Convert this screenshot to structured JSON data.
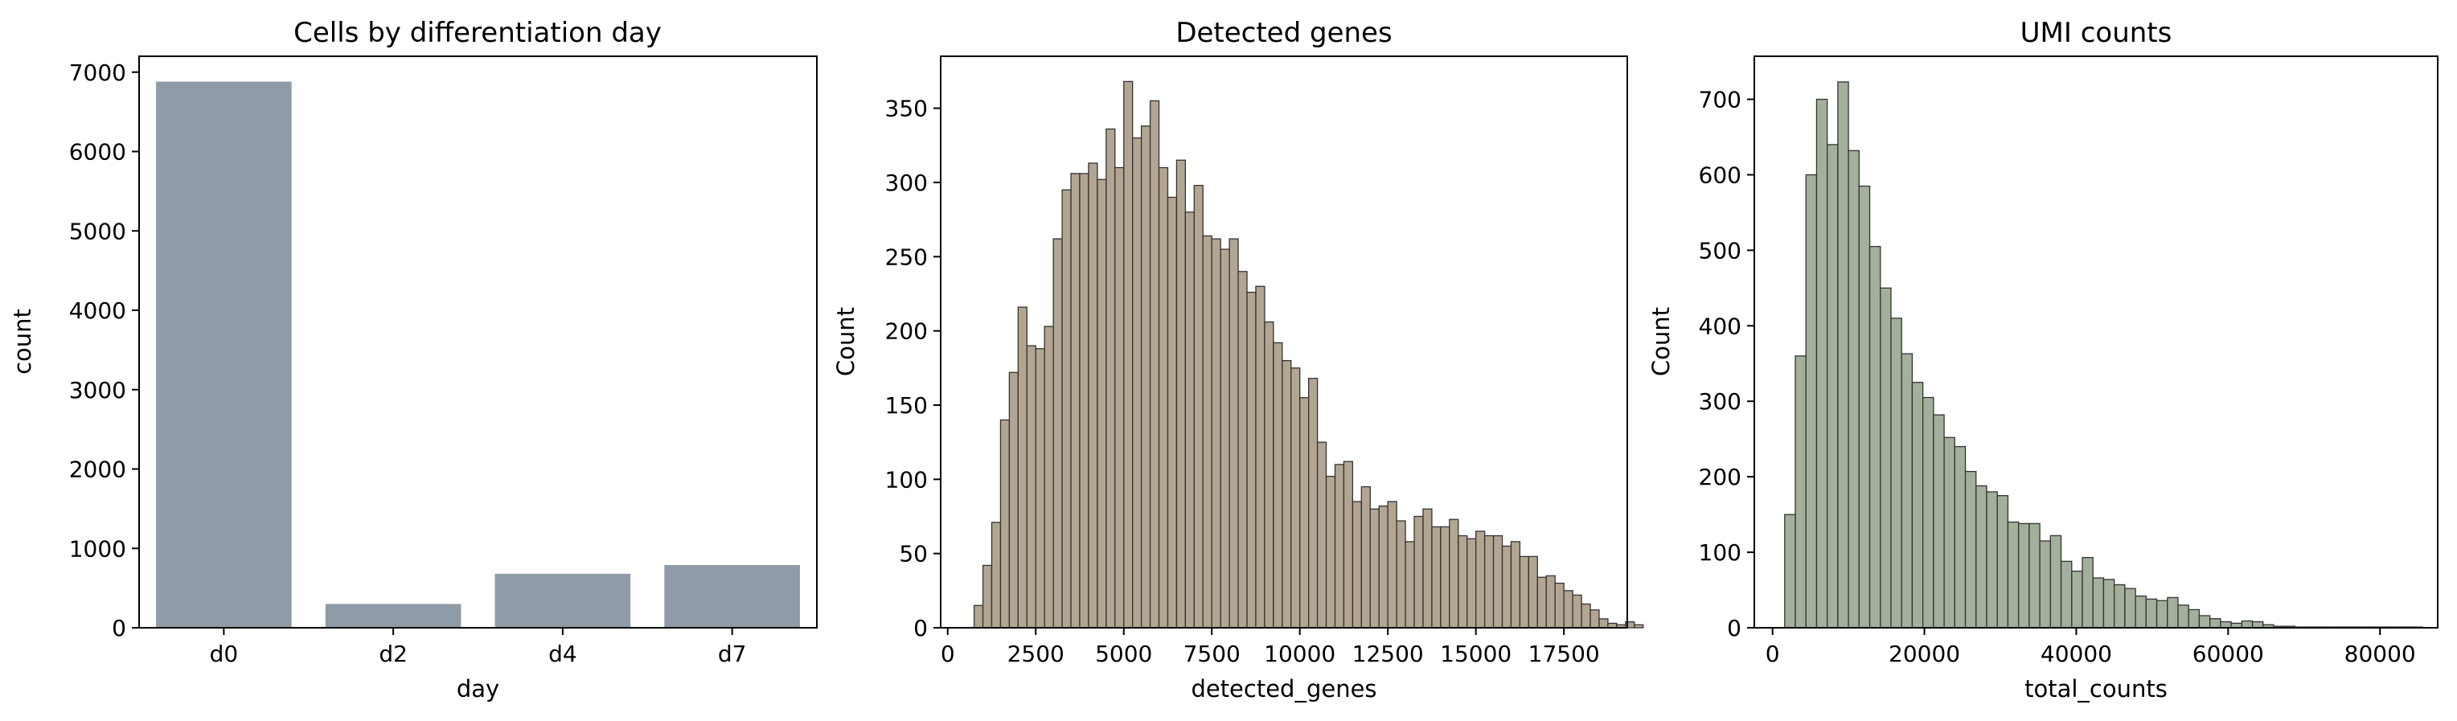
{
  "colors": {
    "bar_day": "#8f9ba6",
    "hist_genes": "#b2a592",
    "hist_umi": "#a3b09b",
    "edge": "#333333"
  },
  "chart_data": [
    {
      "type": "bar",
      "title": "Cells by differentiation day",
      "xlabel": "day",
      "ylabel": "count",
      "categories": [
        "d0",
        "d2",
        "d4",
        "d7"
      ],
      "values": [
        6880,
        300,
        680,
        790
      ],
      "ylim": [
        0,
        7200
      ],
      "yticks": [
        0,
        1000,
        2000,
        3000,
        4000,
        5000,
        6000,
        7000
      ],
      "yticklabels": [
        "0",
        "1000",
        "2000",
        "3000",
        "4000",
        "5000",
        "6000",
        "7000"
      ],
      "grid": false,
      "color": "#8f9ba6"
    },
    {
      "type": "histogram",
      "title": "Detected genes",
      "xlabel": "detected_genes",
      "ylabel": "Count",
      "bin_start": 750,
      "bin_width": 250,
      "counts": [
        15,
        42,
        71,
        140,
        172,
        216,
        190,
        188,
        203,
        262,
        295,
        306,
        306,
        313,
        302,
        336,
        310,
        368,
        330,
        338,
        355,
        310,
        290,
        315,
        280,
        298,
        264,
        262,
        255,
        262,
        240,
        226,
        230,
        206,
        192,
        180,
        175,
        155,
        168,
        125,
        102,
        110,
        112,
        85,
        95,
        80,
        82,
        85,
        72,
        58,
        75,
        80,
        68,
        68,
        73,
        62,
        60,
        65,
        62,
        62,
        55,
        58,
        48,
        48,
        34,
        35,
        30,
        25,
        22,
        16,
        12,
        6,
        3,
        2,
        4,
        2
      ],
      "xlim": [
        -200,
        19300
      ],
      "ylim": [
        0,
        385
      ],
      "xticks": [
        0,
        2500,
        5000,
        7500,
        10000,
        12500,
        15000,
        17500
      ],
      "xticklabels": [
        "0",
        "2500",
        "5000",
        "7500",
        "10000",
        "12500",
        "15000",
        "17500"
      ],
      "yticks": [
        0,
        50,
        100,
        150,
        200,
        250,
        300,
        350
      ],
      "yticklabels": [
        "0",
        "50",
        "100",
        "150",
        "200",
        "250",
        "300",
        "350"
      ],
      "grid": false,
      "color": "#b2a592"
    },
    {
      "type": "histogram",
      "title": "UMI counts",
      "xlabel": "total_counts",
      "ylabel": "Count",
      "bin_start": 1600,
      "bin_width": 1400,
      "counts": [
        150,
        360,
        600,
        700,
        640,
        723,
        632,
        585,
        505,
        450,
        410,
        363,
        325,
        305,
        282,
        252,
        240,
        207,
        188,
        180,
        175,
        140,
        138,
        138,
        115,
        122,
        88,
        75,
        93,
        66,
        64,
        57,
        52,
        42,
        38,
        36,
        40,
        30,
        24,
        16,
        12,
        8,
        6,
        9,
        8,
        4,
        2,
        2,
        1,
        1,
        1,
        1,
        1,
        1,
        1,
        1,
        1,
        1,
        1,
        1
      ],
      "xlim": [
        -2400,
        87600
      ],
      "ylim": [
        0,
        757
      ],
      "xticks": [
        0,
        20000,
        40000,
        60000,
        80000
      ],
      "xticklabels": [
        "0",
        "20000",
        "40000",
        "60000",
        "80000"
      ],
      "yticks": [
        0,
        100,
        200,
        300,
        400,
        500,
        600,
        700
      ],
      "yticklabels": [
        "0",
        "100",
        "200",
        "300",
        "400",
        "500",
        "600",
        "700"
      ],
      "grid": false,
      "color": "#a3b09b"
    }
  ]
}
